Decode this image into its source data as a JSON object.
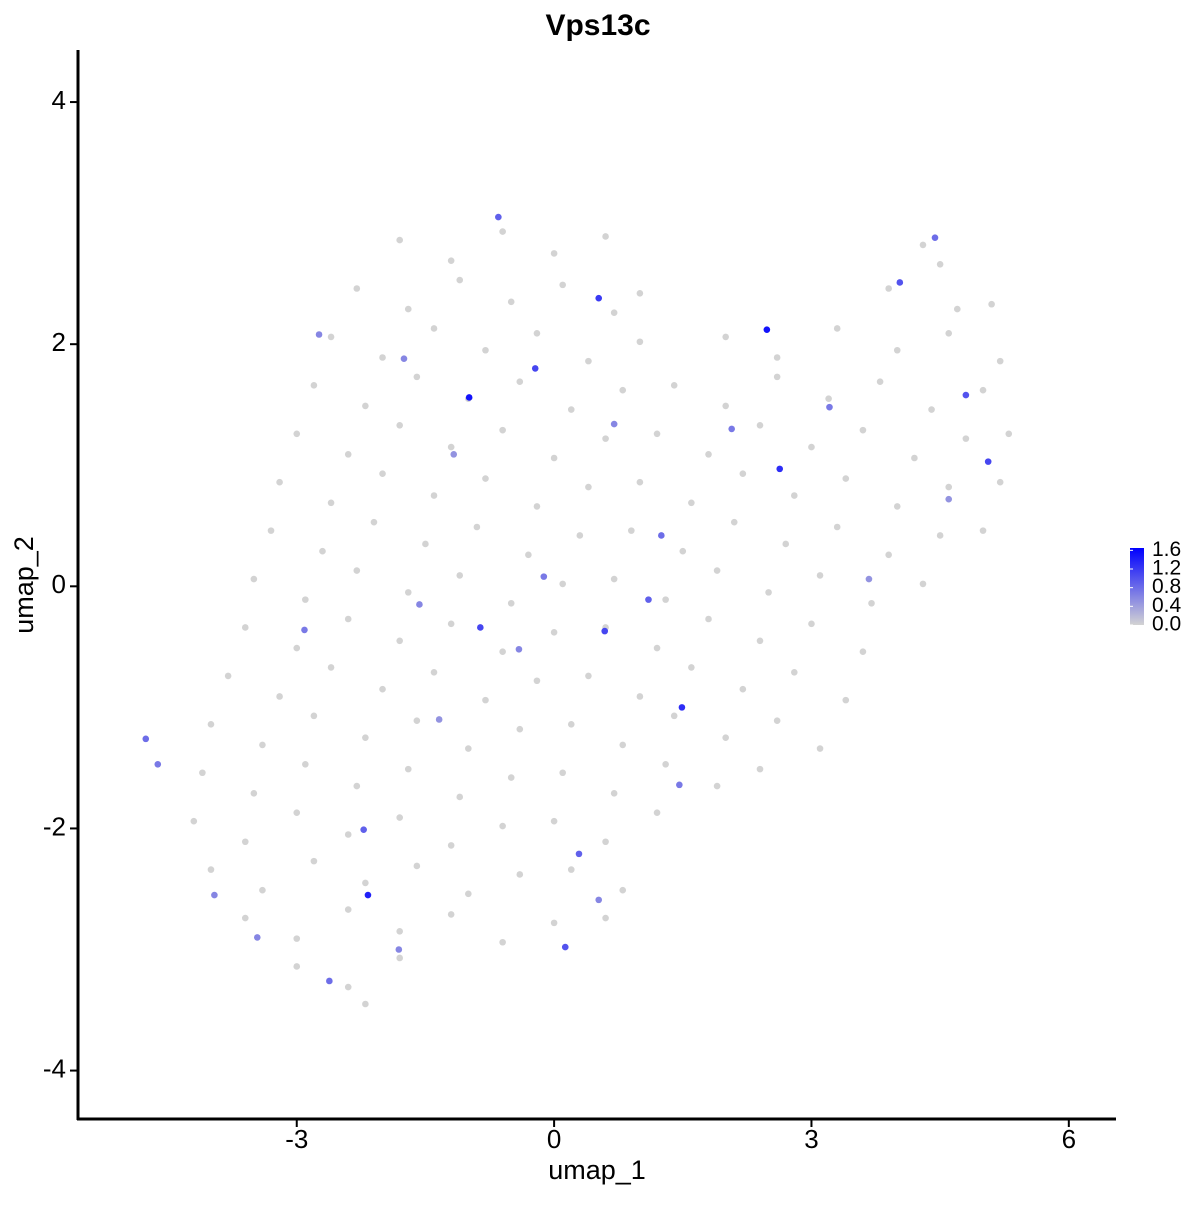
{
  "chart_data": {
    "type": "scatter",
    "title": "Vps13c",
    "x_label": "umap_1",
    "y_label": "umap_2",
    "xlim": [
      -5.55,
      6.55
    ],
    "ylim": [
      -4.4,
      4.43
    ],
    "xticks": [
      -3,
      0,
      3,
      6
    ],
    "yticks": [
      -4,
      -2,
      0,
      2,
      4
    ],
    "x": [
      -1.8,
      -1.2,
      -0.6,
      0.0,
      0.6,
      4.5,
      4.3,
      -2.3,
      -1.7,
      -1.1,
      -0.5,
      0.1,
      0.7,
      1.0,
      3.9,
      4.7,
      5.1,
      -2.6,
      -2.0,
      -1.4,
      -0.8,
      -0.2,
      0.4,
      1.0,
      2.0,
      2.6,
      3.3,
      4.0,
      4.6,
      5.2,
      -2.8,
      -2.2,
      -1.6,
      -1.0,
      -0.4,
      0.2,
      0.8,
      1.4,
      2.0,
      2.6,
      3.2,
      3.8,
      4.4,
      5.0,
      -3.0,
      -2.4,
      -1.8,
      -1.2,
      -0.6,
      0.0,
      0.6,
      1.2,
      1.8,
      2.4,
      3.0,
      3.6,
      4.2,
      4.8,
      5.3,
      -3.2,
      -2.6,
      -2.0,
      -1.4,
      -0.8,
      -0.2,
      0.4,
      1.0,
      1.6,
      2.2,
      2.8,
      3.4,
      4.0,
      4.6,
      5.2,
      -3.3,
      -2.7,
      -2.1,
      -1.5,
      -0.9,
      -0.3,
      0.3,
      0.9,
      1.5,
      2.1,
      2.7,
      3.3,
      3.9,
      4.5,
      5.0,
      -3.5,
      -2.9,
      -2.3,
      -1.7,
      -1.1,
      -0.5,
      0.1,
      0.7,
      1.3,
      1.9,
      2.5,
      3.1,
      3.7,
      4.3,
      -3.6,
      -3.0,
      -2.4,
      -1.8,
      -1.2,
      -0.6,
      0.0,
      0.6,
      1.2,
      1.8,
      2.4,
      3.0,
      3.6,
      -3.8,
      -3.2,
      -2.6,
      -2.0,
      -1.4,
      -0.8,
      -0.2,
      0.4,
      1.0,
      1.6,
      2.2,
      2.8,
      3.4,
      -4.0,
      -3.4,
      -2.8,
      -2.2,
      -1.6,
      -1.0,
      -0.4,
      0.2,
      0.8,
      1.4,
      2.0,
      2.6,
      3.1,
      -4.1,
      -3.5,
      -2.9,
      -2.3,
      -1.7,
      -1.1,
      -0.5,
      0.1,
      0.7,
      1.3,
      1.9,
      2.4,
      -4.2,
      -3.6,
      -3.0,
      -2.4,
      -1.8,
      -1.2,
      -0.6,
      0.0,
      0.6,
      1.2,
      -4.0,
      -3.4,
      -2.8,
      -2.2,
      -1.6,
      -1.0,
      -0.4,
      0.2,
      0.8,
      -3.6,
      -3.0,
      -2.4,
      -1.8,
      -1.2,
      -0.6,
      0.0,
      0.6,
      -3.0,
      -2.4,
      -1.8,
      -2.2,
      -0.99,
      2.48,
      2.63,
      1.49,
      -2.17,
      0.52,
      -0.22,
      -0.86,
      0.59,
      5.06,
      4.8,
      4.03,
      -2.22,
      0.13,
      -0.65,
      -4.76,
      -4.62,
      -2.62,
      0.29,
      -0.12,
      1.1,
      4.44,
      -2.91,
      -1.75,
      -2.74,
      1.25,
      3.21,
      -1.57,
      2.07,
      -3.46,
      -3.96,
      1.46,
      -0.41,
      0.7,
      -1.17,
      4.6,
      3.67,
      -1.81,
      -1.34,
      0.52
    ],
    "y": [
      2.86,
      2.69,
      2.93,
      2.75,
      2.89,
      2.66,
      2.82,
      2.46,
      2.29,
      2.53,
      2.35,
      2.49,
      2.26,
      2.42,
      2.46,
      2.29,
      2.33,
      2.06,
      1.89,
      2.13,
      1.95,
      2.09,
      1.86,
      2.02,
      2.06,
      1.89,
      2.13,
      1.95,
      2.09,
      1.86,
      1.66,
      1.49,
      1.73,
      1.55,
      1.69,
      1.46,
      1.62,
      1.66,
      1.49,
      1.73,
      1.55,
      1.69,
      1.46,
      1.62,
      1.26,
      1.09,
      1.33,
      1.15,
      1.29,
      1.06,
      1.22,
      1.26,
      1.09,
      1.33,
      1.15,
      1.29,
      1.06,
      1.22,
      1.26,
      0.86,
      0.69,
      0.93,
      0.75,
      0.89,
      0.66,
      0.82,
      0.86,
      0.69,
      0.93,
      0.75,
      0.89,
      0.66,
      0.82,
      0.86,
      0.46,
      0.29,
      0.53,
      0.35,
      0.49,
      0.26,
      0.42,
      0.46,
      0.29,
      0.53,
      0.35,
      0.49,
      0.26,
      0.42,
      0.46,
      0.06,
      -0.11,
      0.13,
      -0.05,
      0.09,
      -0.14,
      0.02,
      0.06,
      -0.11,
      0.13,
      -0.05,
      0.09,
      -0.14,
      0.02,
      -0.34,
      -0.51,
      -0.27,
      -0.45,
      -0.31,
      -0.54,
      -0.38,
      -0.34,
      -0.51,
      -0.27,
      -0.45,
      -0.31,
      -0.54,
      -0.74,
      -0.91,
      -0.67,
      -0.85,
      -0.71,
      -0.94,
      -0.78,
      -0.74,
      -0.91,
      -0.67,
      -0.85,
      -0.71,
      -0.94,
      -1.14,
      -1.31,
      -1.07,
      -1.25,
      -1.11,
      -1.34,
      -1.18,
      -1.14,
      -1.31,
      -1.07,
      -1.25,
      -1.11,
      -1.34,
      -1.54,
      -1.71,
      -1.47,
      -1.65,
      -1.51,
      -1.74,
      -1.58,
      -1.54,
      -1.71,
      -1.47,
      -1.65,
      -1.51,
      -1.94,
      -2.11,
      -1.87,
      -2.05,
      -1.91,
      -2.14,
      -1.98,
      -1.94,
      -2.11,
      -1.87,
      -2.34,
      -2.51,
      -2.27,
      -2.45,
      -2.31,
      -2.54,
      -2.38,
      -2.34,
      -2.51,
      -2.74,
      -2.91,
      -2.67,
      -2.85,
      -2.71,
      -2.94,
      -2.78,
      -2.74,
      -3.14,
      -3.31,
      -3.07,
      -3.45,
      1.56,
      2.12,
      0.97,
      -1.0,
      -2.55,
      2.38,
      1.8,
      -0.34,
      -0.37,
      1.03,
      1.58,
      2.51,
      -2.01,
      -2.98,
      3.05,
      -1.26,
      -1.47,
      -3.26,
      -2.21,
      0.08,
      -0.11,
      2.88,
      -0.36,
      1.88,
      2.08,
      0.42,
      1.48,
      -0.15,
      1.3,
      -2.9,
      -2.55,
      -1.64,
      -0.52,
      1.34,
      1.09,
      0.72,
      0.06,
      -3.0,
      -1.1,
      -2.59
    ],
    "values": [
      0,
      0,
      0,
      0,
      0,
      0,
      0,
      0,
      0,
      0,
      0,
      0,
      0,
      0,
      0,
      0,
      0,
      0,
      0,
      0,
      0,
      0,
      0,
      0,
      0,
      0,
      0,
      0,
      0,
      0,
      0,
      0,
      0,
      0,
      0,
      0,
      0,
      0,
      0,
      0,
      0,
      0,
      0,
      0,
      0,
      0,
      0,
      0,
      0,
      0,
      0,
      0,
      0,
      0,
      0,
      0,
      0,
      0,
      0,
      0,
      0,
      0,
      0,
      0,
      0,
      0,
      0,
      0,
      0,
      0,
      0,
      0,
      0,
      0,
      0,
      0,
      0,
      0,
      0,
      0,
      0,
      0,
      0,
      0,
      0,
      0,
      0,
      0,
      0,
      0,
      0,
      0,
      0,
      0,
      0,
      0,
      0,
      0,
      0,
      0,
      0,
      0,
      0,
      0,
      0,
      0,
      0,
      0,
      0,
      0,
      0,
      0,
      0,
      0,
      0,
      0,
      0,
      0,
      0,
      0,
      0,
      0,
      0,
      0,
      0,
      0,
      0,
      0,
      0,
      0,
      0,
      0,
      0,
      0,
      0,
      0,
      0,
      0,
      0,
      0,
      0,
      0,
      0,
      0,
      0,
      0,
      0,
      0,
      0,
      0,
      0,
      0,
      0,
      0,
      0,
      0,
      0,
      0,
      0,
      0,
      0,
      0,
      0,
      0,
      0,
      0,
      0,
      0,
      0,
      0,
      0,
      0,
      0,
      0,
      0,
      0,
      0,
      0,
      0,
      0,
      0,
      0,
      0,
      0,
      0,
      1.5,
      1.5,
      1.3,
      1.3,
      1.4,
      1.2,
      1.1,
      1.1,
      1.1,
      1.1,
      1.0,
      1.0,
      0.9,
      1.0,
      0.9,
      0.8,
      0.7,
      0.8,
      0.9,
      0.7,
      0.9,
      0.8,
      0.7,
      0.6,
      0.6,
      0.8,
      0.7,
      0.6,
      0.7,
      0.6,
      0.6,
      0.7,
      0.6,
      0.6,
      0.5,
      0.5,
      0.5,
      0.6,
      0.5,
      0.6
    ],
    "colorbar": {
      "lim": [
        0,
        1.65
      ],
      "colors": [
        "#d3d3d3",
        "#0000ff"
      ],
      "ticks": [
        {
          "value": 0,
          "label": "0.0"
        },
        {
          "value": 0.4,
          "label": "0.4"
        },
        {
          "value": 0.8,
          "label": "0.8"
        },
        {
          "value": 1.2,
          "label": "1.2"
        },
        {
          "value": 1.6,
          "label": "1.6"
        }
      ]
    }
  }
}
